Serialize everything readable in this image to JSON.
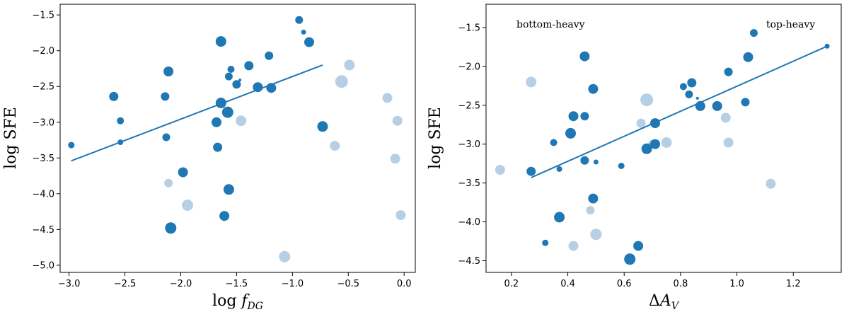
{
  "colors": {
    "dark": "#1f77b4",
    "light": "#b7cfe5",
    "fit_line": "#1f77b4",
    "frame": "#000000"
  },
  "chart_data": [
    {
      "type": "scatter",
      "xlabel": "log f_DG",
      "xlabel_main": "log ",
      "xlabel_var": "f",
      "xlabel_sub": "DG",
      "ylabel": "log SFE",
      "xlim": [
        -3.08,
        0.1
      ],
      "ylim": [
        -5.1,
        -1.35
      ],
      "xticks": [
        -3.0,
        -2.5,
        -2.0,
        -1.5,
        -1.0,
        -0.5,
        0.0
      ],
      "xtick_labels": [
        "−3.0",
        "−2.5",
        "−2.0",
        "−1.5",
        "−1.0",
        "−0.5",
        "0.0"
      ],
      "yticks": [
        -5.0,
        -4.5,
        -4.0,
        -3.5,
        -3.0,
        -2.5,
        -2.0,
        -1.5
      ],
      "ytick_labels": [
        "−5.0",
        "−4.5",
        "−4.0",
        "−3.5",
        "−3.0",
        "−2.5",
        "−2.0",
        "−1.5"
      ],
      "fit_line": {
        "x": [
          -2.98,
          -0.73
        ],
        "y": [
          -3.54,
          -2.2
        ]
      },
      "points": [
        {
          "x": -2.98,
          "y": -3.32,
          "s": 4.5,
          "c": "dark"
        },
        {
          "x": -2.6,
          "y": -2.64,
          "s": 6.5,
          "c": "dark"
        },
        {
          "x": -2.54,
          "y": -2.98,
          "s": 5,
          "c": "dark"
        },
        {
          "x": -2.54,
          "y": -3.28,
          "s": 4,
          "c": "dark"
        },
        {
          "x": -2.14,
          "y": -2.64,
          "s": 6,
          "c": "dark"
        },
        {
          "x": -2.13,
          "y": -3.21,
          "s": 5.5,
          "c": "dark"
        },
        {
          "x": -2.11,
          "y": -2.29,
          "s": 7,
          "c": "dark"
        },
        {
          "x": -2.11,
          "y": -3.85,
          "s": 6,
          "c": "light"
        },
        {
          "x": -2.09,
          "y": -4.48,
          "s": 8,
          "c": "dark"
        },
        {
          "x": -1.98,
          "y": -3.7,
          "s": 7,
          "c": "dark"
        },
        {
          "x": -1.94,
          "y": -4.16,
          "s": 8,
          "c": "light"
        },
        {
          "x": -1.68,
          "y": -3.0,
          "s": 7,
          "c": "dark"
        },
        {
          "x": -1.67,
          "y": -3.35,
          "s": 6.5,
          "c": "dark"
        },
        {
          "x": -1.64,
          "y": -1.87,
          "s": 7.5,
          "c": "dark"
        },
        {
          "x": -1.64,
          "y": -2.73,
          "s": 7.5,
          "c": "dark"
        },
        {
          "x": -1.61,
          "y": -4.31,
          "s": 7,
          "c": "dark"
        },
        {
          "x": -1.58,
          "y": -2.86,
          "s": 8,
          "c": "dark"
        },
        {
          "x": -1.57,
          "y": -3.94,
          "s": 7.5,
          "c": "dark"
        },
        {
          "x": -1.57,
          "y": -2.36,
          "s": 5.5,
          "c": "dark"
        },
        {
          "x": -1.55,
          "y": -2.26,
          "s": 5,
          "c": "dark"
        },
        {
          "x": -1.5,
          "y": -2.47,
          "s": 6,
          "c": "dark"
        },
        {
          "x": -1.47,
          "y": -2.41,
          "s": 2,
          "c": "dark"
        },
        {
          "x": -1.46,
          "y": -2.98,
          "s": 7.5,
          "c": "light"
        },
        {
          "x": -1.39,
          "y": -2.21,
          "s": 6.5,
          "c": "dark"
        },
        {
          "x": -1.31,
          "y": -2.51,
          "s": 7,
          "c": "dark"
        },
        {
          "x": -1.21,
          "y": -2.07,
          "s": 6,
          "c": "dark"
        },
        {
          "x": -1.19,
          "y": -2.52,
          "s": 7,
          "c": "dark"
        },
        {
          "x": -1.07,
          "y": -4.88,
          "s": 8,
          "c": "light"
        },
        {
          "x": -0.94,
          "y": -1.57,
          "s": 5.5,
          "c": "dark"
        },
        {
          "x": -0.9,
          "y": -1.74,
          "s": 3.5,
          "c": "dark"
        },
        {
          "x": -0.85,
          "y": -1.88,
          "s": 7,
          "c": "dark"
        },
        {
          "x": -0.73,
          "y": -3.06,
          "s": 7.5,
          "c": "dark"
        },
        {
          "x": -0.62,
          "y": -3.33,
          "s": 7,
          "c": "light"
        },
        {
          "x": -0.56,
          "y": -2.43,
          "s": 9,
          "c": "light"
        },
        {
          "x": -0.49,
          "y": -2.2,
          "s": 7.5,
          "c": "light"
        },
        {
          "x": -0.15,
          "y": -2.66,
          "s": 7,
          "c": "light"
        },
        {
          "x": -0.08,
          "y": -3.51,
          "s": 7,
          "c": "light"
        },
        {
          "x": -0.06,
          "y": -2.98,
          "s": 7,
          "c": "light"
        },
        {
          "x": -0.03,
          "y": -4.3,
          "s": 7,
          "c": "light"
        }
      ]
    },
    {
      "type": "scatter",
      "xlabel": "ΔA_V",
      "xlabel_main": "Δ",
      "xlabel_var": "A",
      "xlabel_sub": "V",
      "ylabel": "log SFE",
      "xlim": [
        0.11,
        1.37
      ],
      "ylim": [
        -4.65,
        -1.2
      ],
      "xticks": [
        0.2,
        0.4,
        0.6,
        0.8,
        1.0,
        1.2
      ],
      "xtick_labels": [
        "0.2",
        "0.4",
        "0.6",
        "0.8",
        "1.0",
        "1.2"
      ],
      "yticks": [
        -4.5,
        -4.0,
        -3.5,
        -3.0,
        -2.5,
        -2.0,
        -1.5
      ],
      "ytick_labels": [
        "−4.5",
        "−4.0",
        "−3.5",
        "−3.0",
        "−2.5",
        "−2.0",
        "−1.5"
      ],
      "annotations": {
        "left": "bottom-heavy",
        "right": "top-heavy"
      },
      "fit_line": {
        "x": [
          0.27,
          1.32
        ],
        "y": [
          -3.43,
          -1.74
        ]
      },
      "points": [
        {
          "x": 0.16,
          "y": -3.33,
          "s": 7,
          "c": "light"
        },
        {
          "x": 0.27,
          "y": -2.2,
          "s": 7.5,
          "c": "light"
        },
        {
          "x": 0.27,
          "y": -3.35,
          "s": 6.5,
          "c": "dark"
        },
        {
          "x": 0.32,
          "y": -4.27,
          "s": 4.5,
          "c": "dark"
        },
        {
          "x": 0.35,
          "y": -2.98,
          "s": 5,
          "c": "dark"
        },
        {
          "x": 0.37,
          "y": -3.94,
          "s": 7.5,
          "c": "dark"
        },
        {
          "x": 0.37,
          "y": -3.32,
          "s": 4,
          "c": "dark"
        },
        {
          "x": 0.41,
          "y": -2.86,
          "s": 7.5,
          "c": "dark"
        },
        {
          "x": 0.42,
          "y": -2.64,
          "s": 7,
          "c": "dark"
        },
        {
          "x": 0.42,
          "y": -4.31,
          "s": 7,
          "c": "light"
        },
        {
          "x": 0.46,
          "y": -1.87,
          "s": 7,
          "c": "dark"
        },
        {
          "x": 0.46,
          "y": -2.64,
          "s": 6,
          "c": "dark"
        },
        {
          "x": 0.46,
          "y": -3.21,
          "s": 6,
          "c": "dark"
        },
        {
          "x": 0.48,
          "y": -3.85,
          "s": 6,
          "c": "light"
        },
        {
          "x": 0.49,
          "y": -2.29,
          "s": 7,
          "c": "dark"
        },
        {
          "x": 0.49,
          "y": -3.7,
          "s": 7,
          "c": "dark"
        },
        {
          "x": 0.5,
          "y": -3.23,
          "s": 3.5,
          "c": "dark"
        },
        {
          "x": 0.5,
          "y": -4.16,
          "s": 8,
          "c": "light"
        },
        {
          "x": 0.59,
          "y": -3.28,
          "s": 4.5,
          "c": "dark"
        },
        {
          "x": 0.62,
          "y": -4.48,
          "s": 8,
          "c": "dark"
        },
        {
          "x": 0.65,
          "y": -4.31,
          "s": 7,
          "c": "dark"
        },
        {
          "x": 0.66,
          "y": -2.73,
          "s": 6.5,
          "c": "light"
        },
        {
          "x": 0.68,
          "y": -2.43,
          "s": 9,
          "c": "light"
        },
        {
          "x": 0.68,
          "y": -3.06,
          "s": 7.5,
          "c": "dark"
        },
        {
          "x": 0.7,
          "y": -3.0,
          "s": 6,
          "c": "light"
        },
        {
          "x": 0.71,
          "y": -2.73,
          "s": 7,
          "c": "dark"
        },
        {
          "x": 0.71,
          "y": -3.0,
          "s": 7,
          "c": "dark"
        },
        {
          "x": 0.75,
          "y": -2.98,
          "s": 7.5,
          "c": "light"
        },
        {
          "x": 0.81,
          "y": -2.26,
          "s": 5,
          "c": "dark"
        },
        {
          "x": 0.83,
          "y": -2.36,
          "s": 5.5,
          "c": "dark"
        },
        {
          "x": 0.84,
          "y": -2.21,
          "s": 6.5,
          "c": "dark"
        },
        {
          "x": 0.86,
          "y": -2.41,
          "s": 2,
          "c": "dark"
        },
        {
          "x": 0.87,
          "y": -2.51,
          "s": 7,
          "c": "dark"
        },
        {
          "x": 0.93,
          "y": -2.51,
          "s": 7,
          "c": "dark"
        },
        {
          "x": 0.96,
          "y": -2.66,
          "s": 7,
          "c": "light"
        },
        {
          "x": 0.97,
          "y": -2.07,
          "s": 6,
          "c": "dark"
        },
        {
          "x": 0.97,
          "y": -2.98,
          "s": 7,
          "c": "light"
        },
        {
          "x": 1.03,
          "y": -2.46,
          "s": 6,
          "c": "dark"
        },
        {
          "x": 1.04,
          "y": -1.88,
          "s": 7,
          "c": "dark"
        },
        {
          "x": 1.06,
          "y": -1.57,
          "s": 5.5,
          "c": "dark"
        },
        {
          "x": 1.12,
          "y": -3.51,
          "s": 7,
          "c": "light"
        },
        {
          "x": 1.32,
          "y": -1.74,
          "s": 3.5,
          "c": "dark"
        }
      ]
    }
  ]
}
